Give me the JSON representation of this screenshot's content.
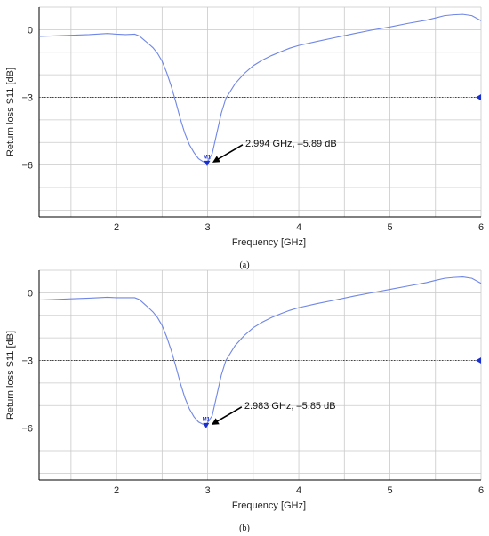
{
  "chart_data": [
    {
      "type": "line",
      "caption": "(a)",
      "xlabel": "Frequency [GHz]",
      "ylabel": "Return loss S11 [dB]",
      "xlim": [
        1.15,
        6.0
      ],
      "ylim": [
        -8.3,
        1.0
      ],
      "xticks": [
        2,
        3,
        4,
        5,
        6
      ],
      "yticks": [
        0,
        -3,
        -6
      ],
      "grid": true,
      "reference_line_y": -3,
      "marker": {
        "label": "M1",
        "x": 2.994,
        "y": -5.89,
        "annotation": "2.994 GHz, –5.89 dB"
      },
      "series": [
        {
          "color": "#6f86e6",
          "x": [
            1.15,
            1.3,
            1.5,
            1.7,
            1.9,
            2.0,
            2.1,
            2.2,
            2.25,
            2.3,
            2.35,
            2.4,
            2.45,
            2.5,
            2.55,
            2.6,
            2.65,
            2.7,
            2.75,
            2.8,
            2.85,
            2.9,
            2.95,
            2.994,
            3.05,
            3.1,
            3.15,
            3.2,
            3.3,
            3.4,
            3.5,
            3.6,
            3.7,
            3.8,
            3.9,
            4.0,
            4.2,
            4.4,
            4.6,
            4.8,
            5.0,
            5.2,
            5.4,
            5.5,
            5.6,
            5.7,
            5.8,
            5.9,
            6.0
          ],
          "y": [
            -0.3,
            -0.28,
            -0.25,
            -0.22,
            -0.17,
            -0.2,
            -0.22,
            -0.2,
            -0.28,
            -0.45,
            -0.62,
            -0.8,
            -1.05,
            -1.4,
            -1.9,
            -2.5,
            -3.2,
            -3.95,
            -4.6,
            -5.1,
            -5.45,
            -5.72,
            -5.85,
            -5.89,
            -5.5,
            -4.6,
            -3.7,
            -3.05,
            -2.4,
            -1.95,
            -1.6,
            -1.35,
            -1.15,
            -0.98,
            -0.82,
            -0.7,
            -0.52,
            -0.35,
            -0.18,
            -0.02,
            0.12,
            0.28,
            0.42,
            0.52,
            0.62,
            0.66,
            0.68,
            0.62,
            0.4
          ]
        }
      ]
    },
    {
      "type": "line",
      "caption": "(b)",
      "xlabel": "Frequency [GHz]",
      "ylabel": "Return loss S11 [dB]",
      "xlim": [
        1.15,
        6.0
      ],
      "ylim": [
        -8.3,
        1.0
      ],
      "xticks": [
        2,
        3,
        4,
        5,
        6
      ],
      "yticks": [
        0,
        -3,
        -6
      ],
      "grid": true,
      "reference_line_y": -3,
      "marker": {
        "label": "M1",
        "x": 2.983,
        "y": -5.85,
        "annotation": "2.983 GHz, –5.85 dB"
      },
      "series": [
        {
          "color": "#6f86e6",
          "x": [
            1.15,
            1.3,
            1.5,
            1.7,
            1.9,
            2.0,
            2.1,
            2.2,
            2.25,
            2.3,
            2.35,
            2.4,
            2.45,
            2.5,
            2.55,
            2.6,
            2.65,
            2.7,
            2.75,
            2.8,
            2.85,
            2.9,
            2.95,
            2.983,
            3.05,
            3.1,
            3.15,
            3.2,
            3.3,
            3.4,
            3.5,
            3.6,
            3.7,
            3.8,
            3.9,
            4.0,
            4.2,
            4.4,
            4.6,
            4.8,
            5.0,
            5.2,
            5.4,
            5.5,
            5.6,
            5.7,
            5.8,
            5.9,
            6.0
          ],
          "y": [
            -0.32,
            -0.3,
            -0.27,
            -0.24,
            -0.2,
            -0.22,
            -0.22,
            -0.22,
            -0.3,
            -0.48,
            -0.66,
            -0.85,
            -1.1,
            -1.45,
            -1.95,
            -2.55,
            -3.25,
            -4.0,
            -4.65,
            -5.15,
            -5.5,
            -5.73,
            -5.83,
            -5.85,
            -5.45,
            -4.55,
            -3.65,
            -3.0,
            -2.35,
            -1.9,
            -1.55,
            -1.3,
            -1.1,
            -0.93,
            -0.78,
            -0.66,
            -0.48,
            -0.32,
            -0.15,
            0.0,
            0.15,
            0.3,
            0.45,
            0.55,
            0.64,
            0.68,
            0.7,
            0.64,
            0.42
          ]
        }
      ]
    }
  ]
}
